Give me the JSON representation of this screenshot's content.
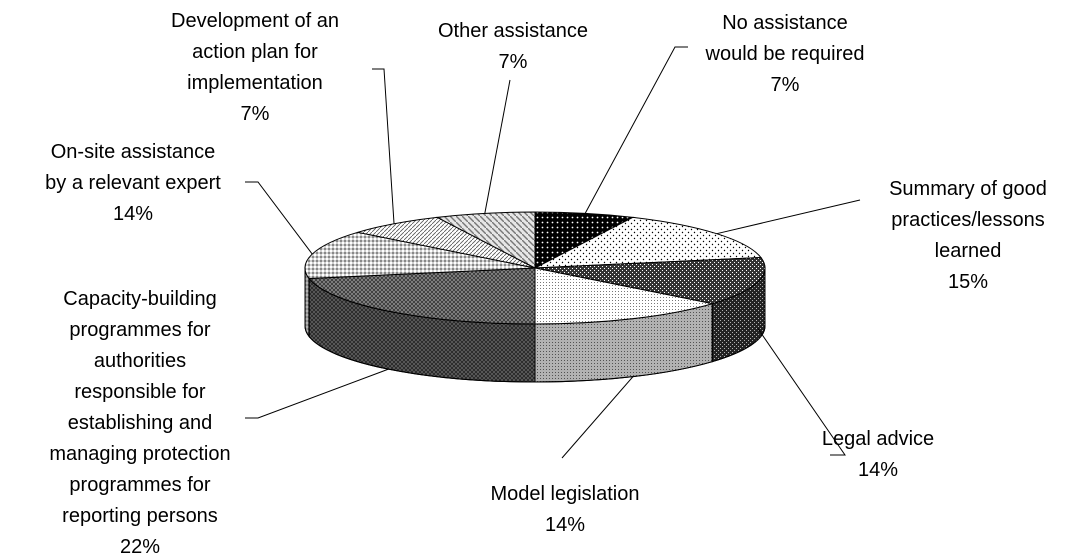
{
  "chart_data": {
    "type": "pie",
    "categories": [
      "No assistance\nwould be required",
      "Summary of good\npractices/lessons\nlearned",
      "Legal advice",
      "Model legislation",
      "Capacity-building\nprogrammes for\nauthorities\nresponsible for\nestablishing and\nmanaging protection\nprogrammes for\nreporting persons",
      "On-site assistance\nby a relevant expert",
      "Development of an\naction plan for\nimplementation",
      "Other assistance"
    ],
    "values": [
      7,
      15,
      14,
      14,
      22,
      14,
      7,
      7
    ],
    "value_labels": [
      "7%",
      "15%",
      "14%",
      "14%",
      "22%",
      "14%",
      "7%",
      "7%"
    ],
    "colors": [
      "#000000",
      "#ffffff",
      "#333333",
      "#ffffff",
      "#8c8c8c",
      "#d0d0d0",
      "#ffffff",
      "#e6e6e6"
    ]
  }
}
